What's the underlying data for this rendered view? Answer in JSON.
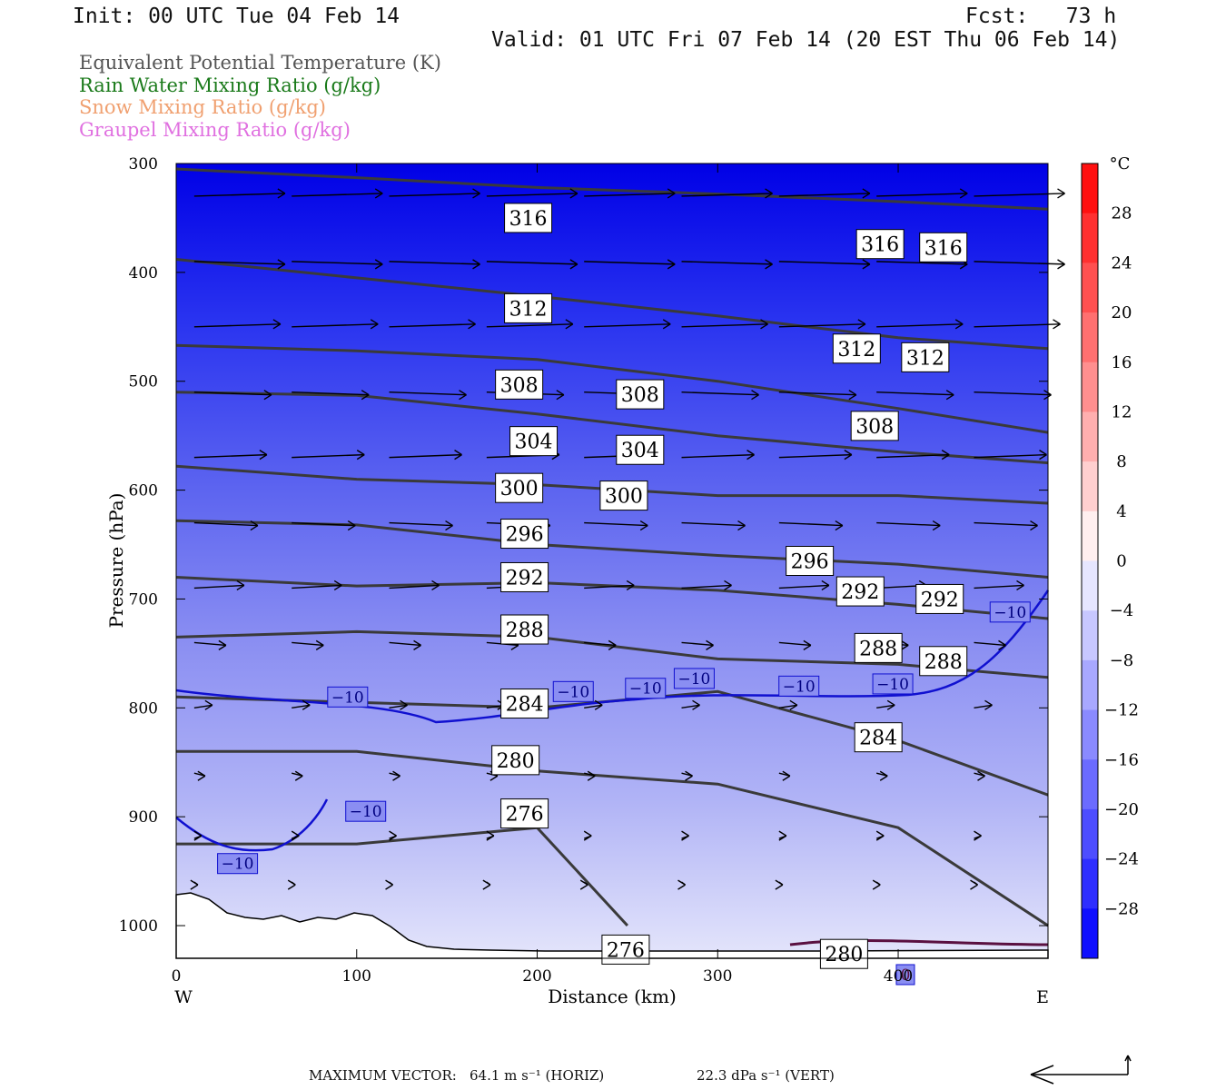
{
  "header": {
    "init": "Init: 00 UTC Tue 04 Feb 14",
    "fcst": "Fcst:   73 h",
    "valid": "Valid: 01 UTC Fri 07 Feb 14 (20 EST Thu 06 Feb 14)"
  },
  "legend": [
    {
      "label": "Equivalent Potential Temperature (K)",
      "color": "#555555"
    },
    {
      "label": "Rain Water Mixing Ratio (g/kg)",
      "color": "#1a7a1a"
    },
    {
      "label": "Snow Mixing Ratio (g/kg)",
      "color": "#f0a070"
    },
    {
      "label": "Graupel Mixing Ratio (g/kg)",
      "color": "#e070e0"
    }
  ],
  "chart_data": {
    "type": "heatmap",
    "xlabel": "Distance (km)",
    "ylabel": "Pressure (hPa)",
    "x_ticks": [
      0,
      100,
      200,
      300,
      400
    ],
    "y_ticks": [
      300,
      400,
      500,
      600,
      700,
      800,
      900,
      1000
    ],
    "xlim": [
      0,
      483
    ],
    "ylim": [
      1030,
      300
    ],
    "x_end_labels": {
      "left": "W",
      "right": "E"
    },
    "colorbar": {
      "unit": "°C",
      "ticks": [
        28,
        24,
        20,
        16,
        12,
        8,
        4,
        0,
        -4,
        -8,
        -12,
        -16,
        -20,
        -24,
        -28
      ],
      "tick_labels": [
        "28",
        "24",
        "20",
        "16",
        "12",
        "8",
        "4",
        "0",
        "−4",
        "−8",
        "−12",
        "−16",
        "−20",
        "−24",
        "−28"
      ],
      "range": [
        -32,
        32
      ]
    },
    "theta_e_contours": [
      {
        "value": 316,
        "points": [
          [
            0,
            305
          ],
          [
            100,
            313
          ],
          [
            200,
            322
          ],
          [
            300,
            328
          ],
          [
            400,
            335
          ],
          [
            483,
            342
          ]
        ],
        "labels": [
          [
            195,
            350
          ],
          [
            390,
            374
          ],
          [
            425,
            377
          ]
        ]
      },
      {
        "value": 312,
        "points": [
          [
            0,
            388
          ],
          [
            100,
            405
          ],
          [
            200,
            422
          ],
          [
            300,
            440
          ],
          [
            400,
            460
          ],
          [
            483,
            470
          ]
        ],
        "labels": [
          [
            195,
            433
          ],
          [
            377,
            470
          ],
          [
            415,
            478
          ]
        ]
      },
      {
        "value": 308,
        "points": [
          [
            0,
            467
          ],
          [
            100,
            472
          ],
          [
            200,
            480
          ],
          [
            300,
            500
          ],
          [
            400,
            525
          ],
          [
            483,
            547
          ]
        ],
        "labels": [
          [
            190,
            503
          ],
          [
            257,
            512
          ],
          [
            387,
            541
          ]
        ]
      },
      {
        "value": 304,
        "points": [
          [
            0,
            510
          ],
          [
            100,
            513
          ],
          [
            200,
            530
          ],
          [
            300,
            550
          ],
          [
            400,
            565
          ],
          [
            483,
            575
          ]
        ],
        "labels": [
          [
            198,
            555
          ],
          [
            257,
            563
          ]
        ]
      },
      {
        "value": 300,
        "points": [
          [
            0,
            578
          ],
          [
            100,
            590
          ],
          [
            200,
            595
          ],
          [
            300,
            605
          ],
          [
            400,
            605
          ],
          [
            483,
            612
          ]
        ],
        "labels": [
          [
            190,
            598
          ],
          [
            248,
            605
          ]
        ]
      },
      {
        "value": 296,
        "points": [
          [
            0,
            628
          ],
          [
            100,
            632
          ],
          [
            200,
            650
          ],
          [
            300,
            660
          ],
          [
            400,
            668
          ],
          [
            483,
            680
          ]
        ],
        "labels": [
          [
            193,
            640
          ],
          [
            351,
            665
          ]
        ]
      },
      {
        "value": 292,
        "points": [
          [
            0,
            680
          ],
          [
            100,
            688
          ],
          [
            200,
            685
          ],
          [
            300,
            692
          ],
          [
            400,
            705
          ],
          [
            483,
            718
          ]
        ],
        "labels": [
          [
            193,
            680
          ],
          [
            379,
            693
          ],
          [
            423,
            700
          ]
        ]
      },
      {
        "value": 288,
        "points": [
          [
            0,
            735
          ],
          [
            100,
            730
          ],
          [
            200,
            735
          ],
          [
            300,
            755
          ],
          [
            400,
            760
          ],
          [
            483,
            772
          ]
        ],
        "labels": [
          [
            193,
            728
          ],
          [
            389,
            745
          ],
          [
            425,
            757
          ]
        ]
      },
      {
        "value": 284,
        "points": [
          [
            0,
            790
          ],
          [
            100,
            795
          ],
          [
            200,
            800
          ],
          [
            300,
            785
          ],
          [
            400,
            830
          ],
          [
            483,
            880
          ]
        ],
        "labels": [
          [
            193,
            796
          ],
          [
            389,
            827
          ]
        ]
      },
      {
        "value": 280,
        "points": [
          [
            0,
            840
          ],
          [
            100,
            840
          ],
          [
            200,
            858
          ],
          [
            300,
            870
          ],
          [
            400,
            910
          ],
          [
            483,
            1000
          ]
        ],
        "labels": [
          [
            188,
            848
          ],
          [
            370,
            1026
          ]
        ]
      },
      {
        "value": 276,
        "points": [
          [
            0,
            925
          ],
          [
            100,
            925
          ],
          [
            200,
            910
          ],
          [
            250,
            1000
          ]
        ],
        "labels": [
          [
            193,
            897
          ],
          [
            249,
            1022
          ]
        ]
      }
    ],
    "temperature_contours": [
      {
        "value": -10,
        "labels": [
          [
            95,
            790
          ],
          [
            34,
            943
          ],
          [
            105,
            895
          ],
          [
            220,
            785
          ],
          [
            260,
            782
          ],
          [
            287,
            773
          ],
          [
            345,
            780
          ],
          [
            397,
            778
          ],
          [
            462,
            712
          ]
        ]
      },
      {
        "value": 0,
        "labels": [
          [
            404,
            1045
          ]
        ]
      }
    ],
    "vectors_note": "Wind vectors in cross-section plane",
    "footer": {
      "max_vector": "MAXIMUM VECTOR:",
      "horiz": "64.1 m s⁻¹ (HORIZ)",
      "vert": "22.3 dPa s⁻¹ (VERT)"
    }
  }
}
